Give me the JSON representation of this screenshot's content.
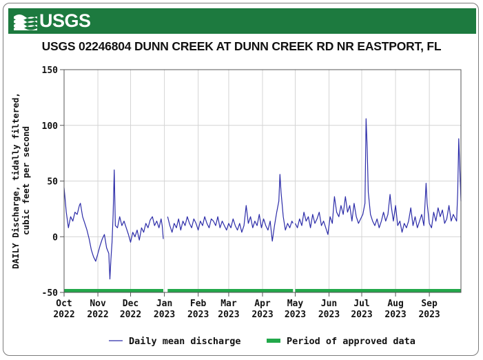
{
  "banner": {
    "logo_text": "USGS",
    "color": "#1d7a3f"
  },
  "chart_data": {
    "type": "line",
    "title": "USGS 02246804 DUNN CREEK AT DUNN CREEK RD NR EASTPORT, FL",
    "ylabel": [
      "DAILY Discharge, tidally filtered,",
      "cubic feet per second"
    ],
    "ylim": [
      -50,
      150
    ],
    "yticks": [
      -50,
      0,
      50,
      100,
      150
    ],
    "xlim": [
      "2022-10-01",
      "2023-09-30"
    ],
    "xticks": [
      {
        "date": "2022-10-01",
        "month": "Oct",
        "year": "2022"
      },
      {
        "date": "2022-11-01",
        "month": "Nov",
        "year": "2022"
      },
      {
        "date": "2022-12-01",
        "month": "Dec",
        "year": "2022"
      },
      {
        "date": "2023-01-01",
        "month": "Jan",
        "year": "2023"
      },
      {
        "date": "2023-02-01",
        "month": "Feb",
        "year": "2023"
      },
      {
        "date": "2023-03-01",
        "month": "Mar",
        "year": "2023"
      },
      {
        "date": "2023-04-01",
        "month": "Apr",
        "year": "2023"
      },
      {
        "date": "2023-05-01",
        "month": "May",
        "year": "2023"
      },
      {
        "date": "2023-06-01",
        "month": "Jun",
        "year": "2023"
      },
      {
        "date": "2023-07-01",
        "month": "Jul",
        "year": "2023"
      },
      {
        "date": "2023-08-01",
        "month": "Aug",
        "year": "2023"
      },
      {
        "date": "2023-09-01",
        "month": "Sep",
        "year": "2023"
      }
    ],
    "grid": true,
    "series": [
      {
        "name": "Daily mean discharge",
        "color": "#2b2ba8",
        "segments": [
          [
            [
              "2022-10-01",
              44
            ],
            [
              "2022-10-03",
              22
            ],
            [
              "2022-10-05",
              8
            ],
            [
              "2022-10-07",
              18
            ],
            [
              "2022-10-09",
              14
            ],
            [
              "2022-10-11",
              22
            ],
            [
              "2022-10-13",
              20
            ],
            [
              "2022-10-15",
              28
            ],
            [
              "2022-10-16",
              30
            ],
            [
              "2022-10-18",
              18
            ],
            [
              "2022-10-20",
              12
            ],
            [
              "2022-10-22",
              6
            ],
            [
              "2022-10-24",
              -2
            ],
            [
              "2022-10-26",
              -12
            ],
            [
              "2022-10-28",
              -18
            ],
            [
              "2022-10-30",
              -22
            ],
            [
              "2022-11-01",
              -15
            ],
            [
              "2022-11-03",
              -8
            ],
            [
              "2022-11-05",
              -2
            ],
            [
              "2022-11-07",
              2
            ],
            [
              "2022-11-09",
              -10
            ],
            [
              "2022-11-11",
              -15
            ],
            [
              "2022-11-12",
              -38
            ],
            [
              "2022-11-13",
              -20
            ],
            [
              "2022-11-14",
              -5
            ],
            [
              "2022-11-15",
              20
            ],
            [
              "2022-11-16",
              60
            ],
            [
              "2022-11-17",
              10
            ],
            [
              "2022-11-19",
              8
            ],
            [
              "2022-11-21",
              18
            ],
            [
              "2022-11-23",
              10
            ],
            [
              "2022-11-25",
              14
            ],
            [
              "2022-11-27",
              8
            ],
            [
              "2022-11-29",
              2
            ],
            [
              "2022-12-01",
              -5
            ],
            [
              "2022-12-03",
              4
            ],
            [
              "2022-12-05",
              0
            ],
            [
              "2022-12-07",
              6
            ],
            [
              "2022-12-09",
              -3
            ],
            [
              "2022-12-11",
              8
            ],
            [
              "2022-12-13",
              4
            ],
            [
              "2022-12-15",
              12
            ],
            [
              "2022-12-17",
              8
            ],
            [
              "2022-12-19",
              15
            ],
            [
              "2022-12-21",
              18
            ],
            [
              "2022-12-23",
              10
            ],
            [
              "2022-12-25",
              14
            ],
            [
              "2022-12-27",
              8
            ],
            [
              "2022-12-29",
              16
            ],
            [
              "2022-12-30",
              10
            ],
            [
              "2022-12-31",
              -2
            ]
          ],
          [
            [
              "2023-01-04",
              18
            ],
            [
              "2023-01-06",
              10
            ],
            [
              "2023-01-08",
              4
            ],
            [
              "2023-01-10",
              12
            ],
            [
              "2023-01-12",
              8
            ],
            [
              "2023-01-14",
              16
            ],
            [
              "2023-01-16",
              6
            ],
            [
              "2023-01-18",
              14
            ],
            [
              "2023-01-20",
              10
            ],
            [
              "2023-01-22",
              18
            ],
            [
              "2023-01-24",
              12
            ],
            [
              "2023-01-26",
              8
            ],
            [
              "2023-01-28",
              16
            ],
            [
              "2023-01-30",
              12
            ],
            [
              "2023-02-01",
              6
            ],
            [
              "2023-02-03",
              14
            ],
            [
              "2023-02-05",
              10
            ],
            [
              "2023-02-07",
              18
            ],
            [
              "2023-02-09",
              12
            ],
            [
              "2023-02-11",
              8
            ],
            [
              "2023-02-13",
              16
            ],
            [
              "2023-02-15",
              14
            ],
            [
              "2023-02-17",
              10
            ],
            [
              "2023-02-19",
              18
            ],
            [
              "2023-02-21",
              8
            ],
            [
              "2023-02-23",
              14
            ],
            [
              "2023-02-25",
              10
            ],
            [
              "2023-02-27",
              6
            ],
            [
              "2023-03-01",
              12
            ],
            [
              "2023-03-03",
              8
            ],
            [
              "2023-03-05",
              16
            ],
            [
              "2023-03-07",
              10
            ],
            [
              "2023-03-09",
              6
            ],
            [
              "2023-03-11",
              12
            ],
            [
              "2023-03-13",
              4
            ],
            [
              "2023-03-15",
              10
            ],
            [
              "2023-03-17",
              28
            ],
            [
              "2023-03-19",
              12
            ],
            [
              "2023-03-21",
              18
            ],
            [
              "2023-03-23",
              8
            ],
            [
              "2023-03-25",
              14
            ],
            [
              "2023-03-27",
              10
            ],
            [
              "2023-03-29",
              20
            ],
            [
              "2023-03-31",
              8
            ],
            [
              "2023-04-02",
              16
            ],
            [
              "2023-04-04",
              10
            ],
            [
              "2023-04-06",
              6
            ],
            [
              "2023-04-08",
              14
            ],
            [
              "2023-04-10",
              -4
            ],
            [
              "2023-04-12",
              10
            ],
            [
              "2023-04-14",
              22
            ],
            [
              "2023-04-16",
              32
            ],
            [
              "2023-04-17",
              56
            ],
            [
              "2023-04-18",
              40
            ],
            [
              "2023-04-20",
              18
            ],
            [
              "2023-04-22",
              6
            ],
            [
              "2023-04-24",
              12
            ],
            [
              "2023-04-26",
              8
            ],
            [
              "2023-04-28",
              14
            ],
            [
              "2023-04-29",
              12
            ]
          ],
          [
            [
              "2023-05-01",
              12
            ],
            [
              "2023-05-03",
              8
            ],
            [
              "2023-05-05",
              16
            ],
            [
              "2023-05-07",
              10
            ],
            [
              "2023-05-09",
              22
            ],
            [
              "2023-05-11",
              14
            ],
            [
              "2023-05-13",
              18
            ],
            [
              "2023-05-15",
              8
            ],
            [
              "2023-05-17",
              20
            ],
            [
              "2023-05-19",
              12
            ],
            [
              "2023-05-21",
              16
            ],
            [
              "2023-05-23",
              22
            ],
            [
              "2023-05-25",
              10
            ],
            [
              "2023-05-27",
              14
            ],
            [
              "2023-05-29",
              8
            ],
            [
              "2023-05-31",
              2
            ],
            [
              "2023-06-02",
              18
            ],
            [
              "2023-06-04",
              12
            ],
            [
              "2023-06-06",
              36
            ],
            [
              "2023-06-08",
              22
            ],
            [
              "2023-06-10",
              18
            ],
            [
              "2023-06-12",
              28
            ],
            [
              "2023-06-14",
              20
            ],
            [
              "2023-06-16",
              36
            ],
            [
              "2023-06-18",
              22
            ],
            [
              "2023-06-20",
              28
            ],
            [
              "2023-06-22",
              14
            ],
            [
              "2023-06-24",
              30
            ],
            [
              "2023-06-26",
              18
            ],
            [
              "2023-06-28",
              12
            ],
            [
              "2023-06-30",
              16
            ],
            [
              "2023-07-02",
              20
            ],
            [
              "2023-07-04",
              30
            ],
            [
              "2023-07-05",
              106
            ],
            [
              "2023-07-06",
              80
            ],
            [
              "2023-07-07",
              40
            ],
            [
              "2023-07-09",
              20
            ],
            [
              "2023-07-11",
              14
            ],
            [
              "2023-07-13",
              10
            ],
            [
              "2023-07-15",
              16
            ],
            [
              "2023-07-17",
              8
            ],
            [
              "2023-07-19",
              14
            ],
            [
              "2023-07-21",
              22
            ],
            [
              "2023-07-23",
              14
            ],
            [
              "2023-07-25",
              20
            ],
            [
              "2023-07-27",
              38
            ],
            [
              "2023-07-28",
              28
            ],
            [
              "2023-07-30",
              14
            ],
            [
              "2023-08-01",
              28
            ],
            [
              "2023-08-03",
              10
            ],
            [
              "2023-08-05",
              14
            ],
            [
              "2023-08-07",
              4
            ],
            [
              "2023-08-09",
              12
            ],
            [
              "2023-08-11",
              8
            ],
            [
              "2023-08-13",
              14
            ],
            [
              "2023-08-15",
              26
            ],
            [
              "2023-08-17",
              10
            ],
            [
              "2023-08-19",
              18
            ],
            [
              "2023-08-21",
              8
            ],
            [
              "2023-08-23",
              14
            ],
            [
              "2023-08-25",
              20
            ],
            [
              "2023-08-27",
              10
            ],
            [
              "2023-08-29",
              48
            ],
            [
              "2023-08-30",
              30
            ],
            [
              "2023-09-01",
              12
            ],
            [
              "2023-09-03",
              8
            ],
            [
              "2023-09-05",
              22
            ],
            [
              "2023-09-07",
              14
            ],
            [
              "2023-09-09",
              26
            ],
            [
              "2023-09-11",
              18
            ],
            [
              "2023-09-13",
              24
            ],
            [
              "2023-09-15",
              12
            ],
            [
              "2023-09-17",
              16
            ],
            [
              "2023-09-19",
              28
            ],
            [
              "2023-09-21",
              14
            ],
            [
              "2023-09-23",
              20
            ],
            [
              "2023-09-25",
              16
            ],
            [
              "2023-09-26",
              14
            ],
            [
              "2023-09-27",
              40
            ],
            [
              "2023-09-28",
              88
            ],
            [
              "2023-09-29",
              60
            ],
            [
              "2023-09-30",
              32
            ]
          ]
        ]
      }
    ],
    "approved_periods": [
      [
        "2022-10-01",
        "2022-12-31"
      ],
      [
        "2023-01-04",
        "2023-04-29"
      ],
      [
        "2023-05-01",
        "2023-09-30"
      ]
    ],
    "approved_color": "#22a84a",
    "legend": [
      {
        "label": "Daily mean discharge",
        "kind": "line",
        "color": "#2b2ba8"
      },
      {
        "label": "Period of approved data",
        "kind": "bar",
        "color": "#22a84a"
      }
    ],
    "legend_position": "bottom"
  }
}
